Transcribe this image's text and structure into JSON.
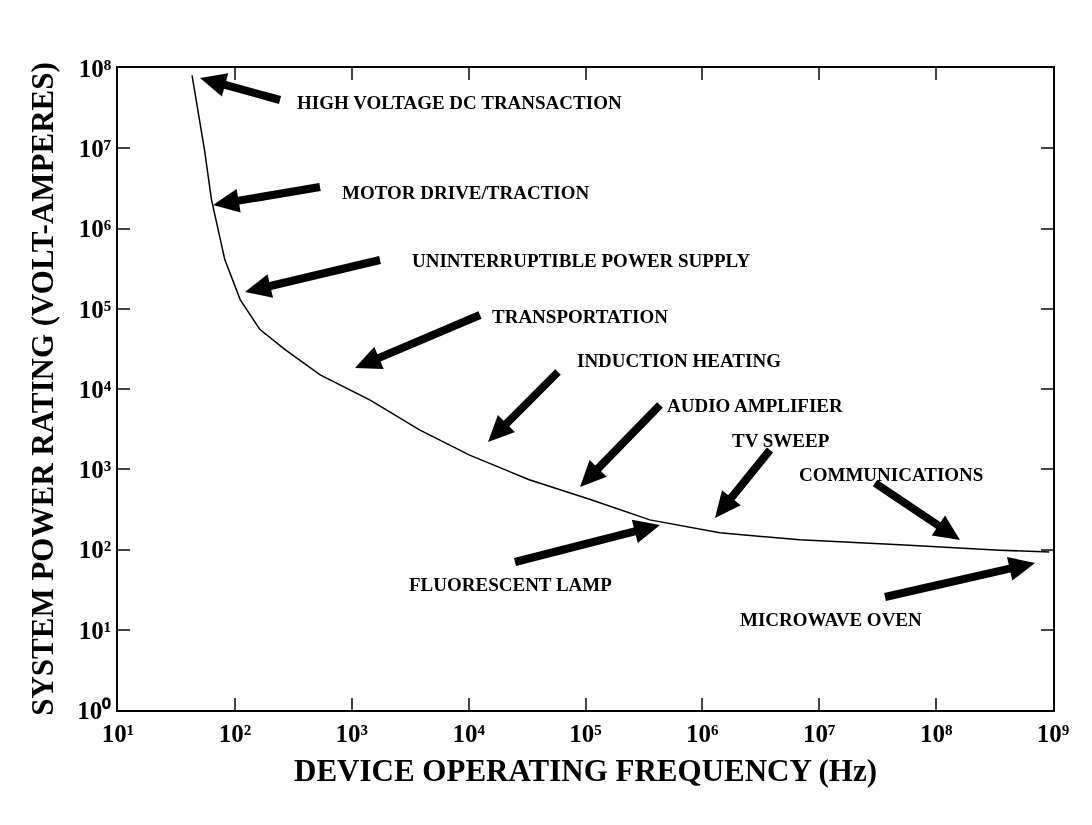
{
  "chart_data": {
    "type": "line",
    "xlabel": "DEVICE OPERATING FREQUENCY (Hz)",
    "ylabel": "SYSTEM POWER RATING (VOLT-AMPERES)",
    "log": "xy",
    "grid": false,
    "marker": "none",
    "line_style": "solid",
    "xlim": [
      10,
      1000000000
    ],
    "ylim": [
      1,
      100000000
    ],
    "xticks": [
      {
        "value": 10,
        "label": "10¹"
      },
      {
        "value": 100,
        "label": "10²"
      },
      {
        "value": 1000,
        "label": "10³"
      },
      {
        "value": 10000,
        "label": "10⁴"
      },
      {
        "value": 100000,
        "label": "10⁵"
      },
      {
        "value": 1000000,
        "label": "10⁶"
      },
      {
        "value": 10000000,
        "label": "10⁷"
      },
      {
        "value": 100000000,
        "label": "10⁸"
      },
      {
        "value": 1000000000,
        "label": "10⁹"
      }
    ],
    "yticks": [
      {
        "value": 1,
        "label": "10⁰"
      },
      {
        "value": 10,
        "label": "10¹"
      },
      {
        "value": 100,
        "label": "10²"
      },
      {
        "value": 1000,
        "label": "10³"
      },
      {
        "value": 10000,
        "label": "10⁴"
      },
      {
        "value": 100000,
        "label": "10⁵"
      },
      {
        "value": 1000000,
        "label": "10⁶"
      },
      {
        "value": 10000000,
        "label": "10⁷"
      },
      {
        "value": 100000000,
        "label": "10⁸"
      }
    ],
    "series": [
      {
        "color": "#000000",
        "x": [
          43,
          55,
          63,
          82,
          111,
          164,
          269,
          537,
          1450,
          3800,
          10200,
          33000,
          110000,
          355000,
          1410000,
          6800000,
          49000000,
          350000000,
          930000000
        ],
        "values": [
          81000000,
          9500000,
          2300000,
          410000,
          130000,
          55000,
          31000,
          15000,
          7200,
          3100,
          1500,
          740,
          420,
          234,
          162,
          132,
          115,
          98,
          93
        ]
      }
    ],
    "annotations": [
      "HIGH VOLTAGE DC TRANSACTION",
      "MOTOR DRIVE/TRACTION",
      "UNINTERRUPTIBLE POWER SUPPLY",
      "TRANSPORTATION",
      "INDUCTION HEATING",
      "AUDIO AMPLIFIER",
      "TV SWEEP",
      "COMMUNICATIONS",
      "FLUORESCENT LAMP",
      "MICROWAVE OVEN"
    ]
  }
}
